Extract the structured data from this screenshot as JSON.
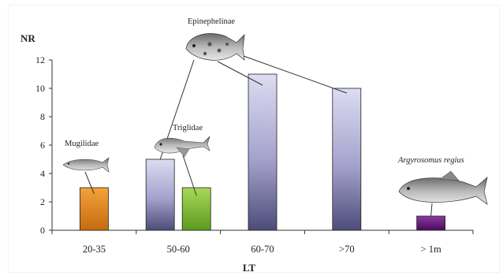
{
  "chart_data": {
    "type": "bar",
    "ylabel": "NR",
    "xlabel": "LT",
    "ylim": [
      0,
      12
    ],
    "yticks": [
      0,
      2,
      4,
      6,
      8,
      10,
      12
    ],
    "categories": [
      "20-35",
      "50-60",
      "60-70",
      ">70",
      "> 1m"
    ],
    "bars": [
      {
        "category": "20-35",
        "group": "Mugilidae",
        "value": 3,
        "color": "#e8861c"
      },
      {
        "category": "50-60",
        "group": "Epinephelinae",
        "value": 5,
        "color": "#a9a6cf"
      },
      {
        "category": "50-60",
        "group": "Triglidae",
        "value": 3,
        "color": "#8cc63e"
      },
      {
        "category": "60-70",
        "group": "Epinephelinae",
        "value": 11,
        "color": "#9896c0"
      },
      {
        "category": ">70",
        "group": "Epinephelinae",
        "value": 10,
        "color": "#9896c0"
      },
      {
        "category": "> 1m",
        "group": "Argyrosomus regius",
        "value": 1,
        "color": "#6a1a80"
      }
    ],
    "annotations": {
      "mugilidae": "Mugilidae",
      "triglidae": "Triglidae",
      "epinephelinae": "Epinephelinae",
      "argyrosomus": "Argyrosomus regius"
    },
    "grid": false,
    "legend": "none"
  }
}
